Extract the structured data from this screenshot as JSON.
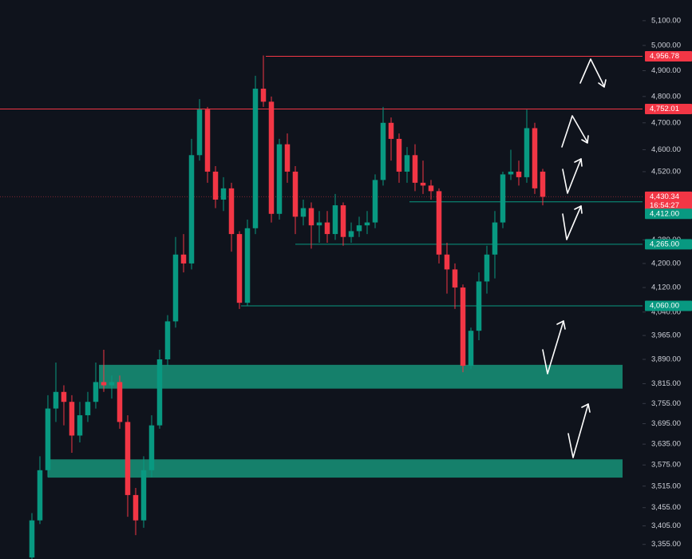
{
  "chart_data": {
    "type": "candlestick",
    "log_scale": true,
    "grid": false,
    "up_color": "#089981",
    "down_color": "#f23645",
    "ylim": [
      3316,
      5185
    ],
    "yticks": [
      {
        "value": 5100,
        "label": "5,100.00"
      },
      {
        "value": 5000,
        "label": "5,000.00"
      },
      {
        "value": 4900,
        "label": "4,900.00"
      },
      {
        "value": 4800,
        "label": "4,800.00"
      },
      {
        "value": 4700,
        "label": "4,700.00"
      },
      {
        "value": 4600,
        "label": "4,600.00"
      },
      {
        "value": 4520,
        "label": "4,520.00"
      },
      {
        "value": 4280,
        "label": "4,280.00"
      },
      {
        "value": 4200,
        "label": "4,200.00"
      },
      {
        "value": 4120,
        "label": "4,120.00"
      },
      {
        "value": 4040,
        "label": "4,040.00"
      },
      {
        "value": 3965,
        "label": "3,965.00"
      },
      {
        "value": 3890,
        "label": "3,890.00"
      },
      {
        "value": 3815,
        "label": "3,815.00"
      },
      {
        "value": 3755,
        "label": "3,755.00"
      },
      {
        "value": 3695,
        "label": "3,695.00"
      },
      {
        "value": 3635,
        "label": "3,635.00"
      },
      {
        "value": 3575,
        "label": "3,575.00"
      },
      {
        "value": 3515,
        "label": "3,515.00"
      },
      {
        "value": 3455,
        "label": "3,455.00"
      },
      {
        "value": 3405,
        "label": "3,405.00"
      },
      {
        "value": 3355,
        "label": "3,355.00"
      }
    ],
    "series": {
      "open": [
        3320,
        3420,
        3560,
        3740,
        3790,
        3760,
        3660,
        3720,
        3760,
        3820,
        3810,
        3820,
        3700,
        3490,
        3420,
        3560,
        3690,
        3890,
        4010,
        4230,
        4200,
        4580,
        4750,
        4520,
        4420,
        4460,
        4300,
        4070,
        4320,
        4830,
        4780,
        4370,
        4620,
        4520,
        4360,
        4390,
        4330,
        4340,
        4300,
        4400,
        4290,
        4310,
        4330,
        4340,
        4490,
        4700,
        4640,
        4520,
        4580,
        4480,
        4470,
        4450,
        4230,
        4180,
        4120,
        3870,
        3980,
        4140,
        4230,
        4340,
        4510,
        4520,
        4500,
        4680,
        4520
      ],
      "high": [
        3440,
        3600,
        3780,
        3880,
        3810,
        3780,
        3760,
        3790,
        3880,
        3920,
        3840,
        3840,
        3720,
        3510,
        3600,
        3720,
        3920,
        4030,
        4290,
        4300,
        4640,
        4790,
        4760,
        4540,
        4500,
        4480,
        4310,
        4350,
        4880,
        4960,
        4800,
        4640,
        4660,
        4540,
        4420,
        4410,
        4380,
        4380,
        4440,
        4410,
        4340,
        4360,
        4380,
        4510,
        4760,
        4720,
        4660,
        4610,
        4620,
        4560,
        4490,
        4460,
        4270,
        4200,
        4130,
        3990,
        4170,
        4260,
        4380,
        4520,
        4600,
        4560,
        4750,
        4700,
        4530
      ],
      "low": [
        3310,
        3410,
        3540,
        3700,
        3690,
        3610,
        3640,
        3700,
        3740,
        3790,
        3770,
        3680,
        3430,
        3380,
        3400,
        3540,
        3680,
        3870,
        3990,
        4170,
        4180,
        4560,
        4480,
        4390,
        4380,
        4240,
        4050,
        4060,
        4300,
        4760,
        4340,
        4350,
        4480,
        4300,
        4330,
        4250,
        4270,
        4270,
        4280,
        4260,
        4270,
        4290,
        4300,
        4320,
        4470,
        4560,
        4480,
        4480,
        4450,
        4440,
        4420,
        4200,
        4100,
        4050,
        3850,
        3860,
        3950,
        4100,
        4150,
        4320,
        4490,
        4470,
        4480,
        4440,
        4400
      ],
      "close": [
        3420,
        3560,
        3740,
        3790,
        3760,
        3660,
        3720,
        3760,
        3820,
        3810,
        3820,
        3700,
        3490,
        3420,
        3560,
        3690,
        3890,
        4010,
        4230,
        4200,
        4580,
        4750,
        4520,
        4420,
        4460,
        4300,
        4070,
        4320,
        4830,
        4780,
        4370,
        4620,
        4520,
        4360,
        4390,
        4330,
        4340,
        4300,
        4400,
        4290,
        4310,
        4330,
        4340,
        4490,
        4700,
        4640,
        4520,
        4580,
        4480,
        4470,
        4450,
        4230,
        4180,
        4120,
        3870,
        3980,
        4140,
        4230,
        4340,
        4510,
        4520,
        4500,
        4680,
        4460,
        4430
      ]
    },
    "price_lines": [
      {
        "value": 4956.78,
        "label": "4,956.78",
        "color": "#f23645"
      },
      {
        "value": 4752.01,
        "label": "4,752.01",
        "color": "#f23645"
      },
      {
        "value": 4430.34,
        "label": "4,430.34",
        "color": "#f23645"
      },
      {
        "value": 4412,
        "label": "4,412.00",
        "color": "#089981"
      },
      {
        "value": 4265,
        "label": "4,265.00",
        "color": "#089981"
      },
      {
        "value": 4060,
        "label": "4,060.00",
        "color": "#089981"
      }
    ],
    "countdown": "16:54:27",
    "zone_color": "#15806b",
    "zones": [
      {
        "low": 3800,
        "high": 3873
      },
      {
        "low": 3539,
        "high": 3591
      }
    ]
  }
}
